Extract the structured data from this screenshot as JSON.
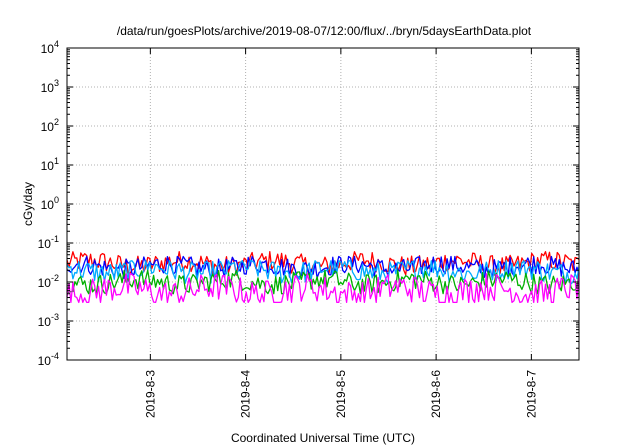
{
  "chart_data": {
    "type": "line",
    "title": "/data/run/goesPlots/archive/2019-08-07/12:00/flux/../bryn/5daysEarthData.plot",
    "xlabel": "Coordinated Universal Time (UTC)",
    "ylabel": "cGy/day",
    "y_scale": "log",
    "ylim_log10": [
      -4,
      4
    ],
    "y_ticks": [
      {
        "base": "10",
        "exp": "-4"
      },
      {
        "base": "10",
        "exp": "-3"
      },
      {
        "base": "10",
        "exp": "-2"
      },
      {
        "base": "10",
        "exp": "-1"
      },
      {
        "base": "10",
        "exp": "0"
      },
      {
        "base": "10",
        "exp": "1"
      },
      {
        "base": "10",
        "exp": "2"
      },
      {
        "base": "10",
        "exp": "3"
      },
      {
        "base": "10",
        "exp": "4"
      }
    ],
    "xlim": [
      "2019-08-02T03:00",
      "2019-08-07T12:00"
    ],
    "x_ticks": [
      {
        "label": "2019-8-3",
        "value": "2019-08-03T00:00"
      },
      {
        "label": "2019-8-4",
        "value": "2019-08-04T00:00"
      },
      {
        "label": "2019-8-5",
        "value": "2019-08-05T00:00"
      },
      {
        "label": "2019-8-6",
        "value": "2019-08-06T00:00"
      },
      {
        "label": "2019-8-7",
        "value": "2019-08-07T00:00"
      }
    ],
    "grid": true,
    "legend": "none",
    "series": [
      {
        "color": "#ff0000",
        "typical_value": 0.03,
        "range": [
          0.015,
          0.06
        ]
      },
      {
        "color": "#0000ff",
        "typical_value": 0.025,
        "range": [
          0.012,
          0.045
        ]
      },
      {
        "color": "#00aaff",
        "typical_value": 0.02,
        "range": [
          0.008,
          0.035
        ]
      },
      {
        "color": "#00b000",
        "typical_value": 0.01,
        "range": [
          0.005,
          0.02
        ]
      },
      {
        "color": "#ff00ff",
        "typical_value": 0.006,
        "range": [
          0.003,
          0.02
        ]
      }
    ]
  }
}
